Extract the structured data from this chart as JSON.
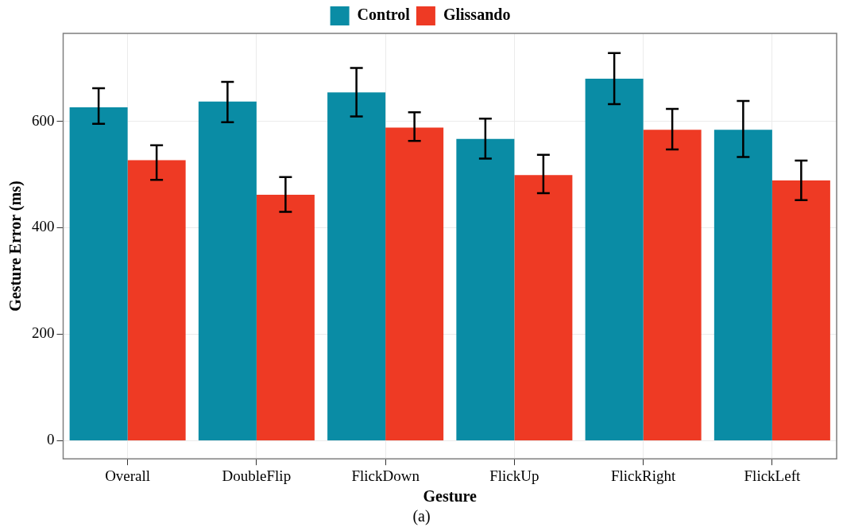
{
  "chart_data": {
    "type": "bar",
    "xlabel": "Gesture",
    "ylabel": "Gesture Error (ms)",
    "categories": [
      "Overall",
      "DoubleFlip",
      "FlickDown",
      "FlickUp",
      "FlickRight",
      "FlickLeft"
    ],
    "series": [
      {
        "name": "Control",
        "color": "#0a8ca5",
        "values": [
          626,
          637,
          654,
          567,
          680,
          584
        ],
        "errors": [
          [
            595,
            662
          ],
          [
            598,
            674
          ],
          [
            609,
            700
          ],
          [
            530,
            605
          ],
          [
            632,
            728
          ],
          [
            533,
            638
          ]
        ]
      },
      {
        "name": "Glissando",
        "color": "#ee3a24",
        "values": [
          527,
          462,
          588,
          499,
          584,
          489
        ],
        "errors": [
          [
            490,
            555
          ],
          [
            430,
            495
          ],
          [
            563,
            617
          ],
          [
            465,
            537
          ],
          [
            547,
            623
          ],
          [
            452,
            526
          ]
        ]
      }
    ],
    "ylim": [
      -34,
      765
    ],
    "yticks": [
      0,
      200,
      400,
      600
    ],
    "grid": true,
    "legend": "top",
    "annotations": [
      "(a)"
    ]
  }
}
